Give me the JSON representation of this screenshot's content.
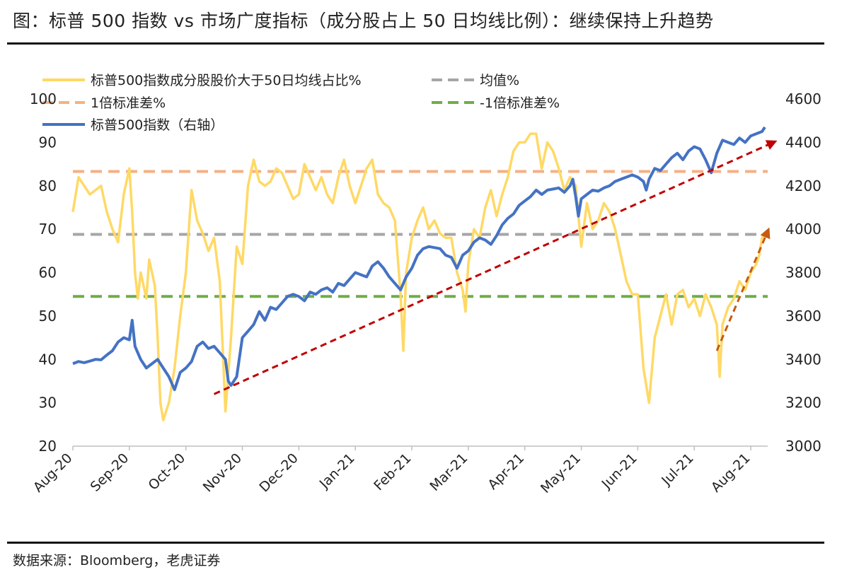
{
  "title": "图：标普 500 指数 vs 市场广度指标（成分股占上 50 日均线比例）：继续保持上升趋势",
  "source": "数据来源：Bloomberg，老虎证券",
  "chart_data": {
    "type": "line",
    "left_axis": {
      "ticks": [
        20,
        30,
        40,
        50,
        60,
        70,
        80,
        90,
        100
      ],
      "range": [
        20,
        100
      ]
    },
    "right_axis": {
      "ticks": [
        3000,
        3200,
        3400,
        3600,
        3800,
        4000,
        4200,
        4400,
        4600
      ],
      "range": [
        3000,
        4600
      ]
    },
    "x_labels": [
      "Aug-20",
      "Sep-20",
      "Oct-20",
      "Nov-20",
      "Dec-20",
      "Jan-21",
      "Feb-21",
      "Mar-21",
      "Apr-21",
      "May-21",
      "Jun-21",
      "Jul-21",
      "Aug-21"
    ],
    "legend": [
      {
        "name": "标普500指数成分股股价大于50日均线占比%",
        "color": "#FFD966",
        "style": "solid"
      },
      {
        "name": "均值%",
        "color": "#A6A6A6",
        "style": "dashed"
      },
      {
        "name": "1倍标准差%",
        "color": "#F4B183",
        "style": "dashed"
      },
      {
        "name": "-1倍标准差%",
        "color": "#70AD47",
        "style": "dashed"
      },
      {
        "name": "标普500指数（右轴）",
        "color": "#4472C4",
        "style": "solid"
      }
    ],
    "reference_lines": {
      "mean": 68.8,
      "plus_1sd": 83.3,
      "minus_1sd": 54.5
    },
    "breadth_pct": [
      {
        "x": 0.0,
        "y": 74
      },
      {
        "x": 0.1,
        "y": 82
      },
      {
        "x": 0.2,
        "y": 80
      },
      {
        "x": 0.3,
        "y": 78
      },
      {
        "x": 0.5,
        "y": 80
      },
      {
        "x": 0.6,
        "y": 74
      },
      {
        "x": 0.7,
        "y": 70
      },
      {
        "x": 0.8,
        "y": 67
      },
      {
        "x": 0.9,
        "y": 78
      },
      {
        "x": 1.0,
        "y": 84
      },
      {
        "x": 1.05,
        "y": 74
      },
      {
        "x": 1.1,
        "y": 60
      },
      {
        "x": 1.15,
        "y": 54
      },
      {
        "x": 1.2,
        "y": 60
      },
      {
        "x": 1.3,
        "y": 54
      },
      {
        "x": 1.35,
        "y": 63
      },
      {
        "x": 1.45,
        "y": 57
      },
      {
        "x": 1.5,
        "y": 45
      },
      {
        "x": 1.55,
        "y": 30
      },
      {
        "x": 1.6,
        "y": 26
      },
      {
        "x": 1.7,
        "y": 30
      },
      {
        "x": 1.8,
        "y": 38
      },
      {
        "x": 1.9,
        "y": 50
      },
      {
        "x": 2.0,
        "y": 60
      },
      {
        "x": 2.1,
        "y": 79
      },
      {
        "x": 2.2,
        "y": 72
      },
      {
        "x": 2.3,
        "y": 69
      },
      {
        "x": 2.4,
        "y": 65
      },
      {
        "x": 2.5,
        "y": 68
      },
      {
        "x": 2.6,
        "y": 58
      },
      {
        "x": 2.7,
        "y": 28
      },
      {
        "x": 2.8,
        "y": 45
      },
      {
        "x": 2.9,
        "y": 66
      },
      {
        "x": 3.0,
        "y": 62
      },
      {
        "x": 3.1,
        "y": 80
      },
      {
        "x": 3.2,
        "y": 86
      },
      {
        "x": 3.3,
        "y": 81
      },
      {
        "x": 3.4,
        "y": 80
      },
      {
        "x": 3.5,
        "y": 81
      },
      {
        "x": 3.6,
        "y": 84
      },
      {
        "x": 3.7,
        "y": 83
      },
      {
        "x": 3.8,
        "y": 80
      },
      {
        "x": 3.9,
        "y": 77
      },
      {
        "x": 4.0,
        "y": 78
      },
      {
        "x": 4.1,
        "y": 85
      },
      {
        "x": 4.2,
        "y": 82
      },
      {
        "x": 4.3,
        "y": 79
      },
      {
        "x": 4.4,
        "y": 82
      },
      {
        "x": 4.5,
        "y": 78
      },
      {
        "x": 4.6,
        "y": 76
      },
      {
        "x": 4.7,
        "y": 82
      },
      {
        "x": 4.8,
        "y": 86
      },
      {
        "x": 4.9,
        "y": 80
      },
      {
        "x": 5.0,
        "y": 76
      },
      {
        "x": 5.1,
        "y": 80
      },
      {
        "x": 5.2,
        "y": 84
      },
      {
        "x": 5.3,
        "y": 86
      },
      {
        "x": 5.4,
        "y": 78
      },
      {
        "x": 5.5,
        "y": 76
      },
      {
        "x": 5.6,
        "y": 75
      },
      {
        "x": 5.7,
        "y": 72
      },
      {
        "x": 5.8,
        "y": 55
      },
      {
        "x": 5.85,
        "y": 42
      },
      {
        "x": 5.9,
        "y": 60
      },
      {
        "x": 6.0,
        "y": 68
      },
      {
        "x": 6.1,
        "y": 72
      },
      {
        "x": 6.2,
        "y": 75
      },
      {
        "x": 6.3,
        "y": 70
      },
      {
        "x": 6.4,
        "y": 72
      },
      {
        "x": 6.5,
        "y": 69
      },
      {
        "x": 6.6,
        "y": 68
      },
      {
        "x": 6.7,
        "y": 68
      },
      {
        "x": 6.8,
        "y": 60
      },
      {
        "x": 6.9,
        "y": 56
      },
      {
        "x": 6.95,
        "y": 51
      },
      {
        "x": 7.0,
        "y": 62
      },
      {
        "x": 7.1,
        "y": 70
      },
      {
        "x": 7.2,
        "y": 68
      },
      {
        "x": 7.3,
        "y": 75
      },
      {
        "x": 7.4,
        "y": 79
      },
      {
        "x": 7.5,
        "y": 73
      },
      {
        "x": 7.6,
        "y": 78
      },
      {
        "x": 7.7,
        "y": 82
      },
      {
        "x": 7.8,
        "y": 88
      },
      {
        "x": 7.9,
        "y": 90
      },
      {
        "x": 8.0,
        "y": 90
      },
      {
        "x": 8.1,
        "y": 92
      },
      {
        "x": 8.2,
        "y": 92
      },
      {
        "x": 8.3,
        "y": 84
      },
      {
        "x": 8.4,
        "y": 90
      },
      {
        "x": 8.5,
        "y": 88
      },
      {
        "x": 8.6,
        "y": 84
      },
      {
        "x": 8.7,
        "y": 79
      },
      {
        "x": 8.8,
        "y": 82
      },
      {
        "x": 8.9,
        "y": 80
      },
      {
        "x": 9.0,
        "y": 66
      },
      {
        "x": 9.1,
        "y": 76
      },
      {
        "x": 9.2,
        "y": 70
      },
      {
        "x": 9.3,
        "y": 72
      },
      {
        "x": 9.4,
        "y": 76
      },
      {
        "x": 9.5,
        "y": 74
      },
      {
        "x": 9.6,
        "y": 70
      },
      {
        "x": 9.7,
        "y": 64
      },
      {
        "x": 9.8,
        "y": 58
      },
      {
        "x": 9.9,
        "y": 55
      },
      {
        "x": 10.0,
        "y": 55
      },
      {
        "x": 10.1,
        "y": 38
      },
      {
        "x": 10.2,
        "y": 30
      },
      {
        "x": 10.3,
        "y": 45
      },
      {
        "x": 10.4,
        "y": 50
      },
      {
        "x": 10.5,
        "y": 55
      },
      {
        "x": 10.6,
        "y": 48
      },
      {
        "x": 10.7,
        "y": 55
      },
      {
        "x": 10.8,
        "y": 56
      },
      {
        "x": 10.9,
        "y": 52
      },
      {
        "x": 11.0,
        "y": 54
      },
      {
        "x": 11.1,
        "y": 50
      },
      {
        "x": 11.2,
        "y": 55
      },
      {
        "x": 11.3,
        "y": 52
      },
      {
        "x": 11.4,
        "y": 48
      },
      {
        "x": 11.45,
        "y": 36
      },
      {
        "x": 11.5,
        "y": 48
      },
      {
        "x": 11.6,
        "y": 52
      },
      {
        "x": 11.7,
        "y": 54
      },
      {
        "x": 11.8,
        "y": 58
      },
      {
        "x": 11.9,
        "y": 56
      },
      {
        "x": 12.0,
        "y": 60
      },
      {
        "x": 12.1,
        "y": 62
      },
      {
        "x": 12.15,
        "y": 64
      },
      {
        "x": 12.2,
        "y": 68
      },
      {
        "x": 12.25,
        "y": 69
      }
    ],
    "sp500_index": [
      {
        "x": 0.0,
        "y": 3380
      },
      {
        "x": 0.1,
        "y": 3390
      },
      {
        "x": 0.2,
        "y": 3385
      },
      {
        "x": 0.3,
        "y": 3392
      },
      {
        "x": 0.4,
        "y": 3400
      },
      {
        "x": 0.5,
        "y": 3398
      },
      {
        "x": 0.6,
        "y": 3420
      },
      {
        "x": 0.7,
        "y": 3440
      },
      {
        "x": 0.8,
        "y": 3480
      },
      {
        "x": 0.9,
        "y": 3500
      },
      {
        "x": 1.0,
        "y": 3490
      },
      {
        "x": 1.05,
        "y": 3580
      },
      {
        "x": 1.1,
        "y": 3460
      },
      {
        "x": 1.2,
        "y": 3400
      },
      {
        "x": 1.3,
        "y": 3360
      },
      {
        "x": 1.4,
        "y": 3380
      },
      {
        "x": 1.5,
        "y": 3400
      },
      {
        "x": 1.6,
        "y": 3360
      },
      {
        "x": 1.7,
        "y": 3320
      },
      {
        "x": 1.75,
        "y": 3290
      },
      {
        "x": 1.8,
        "y": 3260
      },
      {
        "x": 1.9,
        "y": 3340
      },
      {
        "x": 2.0,
        "y": 3360
      },
      {
        "x": 2.1,
        "y": 3390
      },
      {
        "x": 2.2,
        "y": 3460
      },
      {
        "x": 2.3,
        "y": 3480
      },
      {
        "x": 2.4,
        "y": 3450
      },
      {
        "x": 2.5,
        "y": 3460
      },
      {
        "x": 2.6,
        "y": 3430
      },
      {
        "x": 2.7,
        "y": 3400
      },
      {
        "x": 2.75,
        "y": 3300
      },
      {
        "x": 2.8,
        "y": 3280
      },
      {
        "x": 2.9,
        "y": 3320
      },
      {
        "x": 3.0,
        "y": 3500
      },
      {
        "x": 3.1,
        "y": 3530
      },
      {
        "x": 3.2,
        "y": 3560
      },
      {
        "x": 3.3,
        "y": 3620
      },
      {
        "x": 3.4,
        "y": 3580
      },
      {
        "x": 3.5,
        "y": 3640
      },
      {
        "x": 3.6,
        "y": 3630
      },
      {
        "x": 3.7,
        "y": 3660
      },
      {
        "x": 3.8,
        "y": 3690
      },
      {
        "x": 3.9,
        "y": 3700
      },
      {
        "x": 4.0,
        "y": 3690
      },
      {
        "x": 4.1,
        "y": 3670
      },
      {
        "x": 4.2,
        "y": 3710
      },
      {
        "x": 4.3,
        "y": 3700
      },
      {
        "x": 4.4,
        "y": 3720
      },
      {
        "x": 4.5,
        "y": 3730
      },
      {
        "x": 4.6,
        "y": 3710
      },
      {
        "x": 4.7,
        "y": 3750
      },
      {
        "x": 4.8,
        "y": 3740
      },
      {
        "x": 4.9,
        "y": 3770
      },
      {
        "x": 5.0,
        "y": 3800
      },
      {
        "x": 5.1,
        "y": 3790
      },
      {
        "x": 5.2,
        "y": 3780
      },
      {
        "x": 5.3,
        "y": 3830
      },
      {
        "x": 5.4,
        "y": 3850
      },
      {
        "x": 5.5,
        "y": 3820
      },
      {
        "x": 5.6,
        "y": 3780
      },
      {
        "x": 5.7,
        "y": 3750
      },
      {
        "x": 5.8,
        "y": 3720
      },
      {
        "x": 5.9,
        "y": 3780
      },
      {
        "x": 6.0,
        "y": 3820
      },
      {
        "x": 6.1,
        "y": 3880
      },
      {
        "x": 6.2,
        "y": 3910
      },
      {
        "x": 6.3,
        "y": 3920
      },
      {
        "x": 6.4,
        "y": 3915
      },
      {
        "x": 6.5,
        "y": 3910
      },
      {
        "x": 6.6,
        "y": 3880
      },
      {
        "x": 6.7,
        "y": 3870
      },
      {
        "x": 6.8,
        "y": 3820
      },
      {
        "x": 6.9,
        "y": 3880
      },
      {
        "x": 7.0,
        "y": 3900
      },
      {
        "x": 7.1,
        "y": 3940
      },
      {
        "x": 7.2,
        "y": 3960
      },
      {
        "x": 7.3,
        "y": 3950
      },
      {
        "x": 7.4,
        "y": 3930
      },
      {
        "x": 7.5,
        "y": 3970
      },
      {
        "x": 7.6,
        "y": 4020
      },
      {
        "x": 7.7,
        "y": 4050
      },
      {
        "x": 7.8,
        "y": 4070
      },
      {
        "x": 7.9,
        "y": 4110
      },
      {
        "x": 8.0,
        "y": 4130
      },
      {
        "x": 8.1,
        "y": 4150
      },
      {
        "x": 8.2,
        "y": 4180
      },
      {
        "x": 8.3,
        "y": 4160
      },
      {
        "x": 8.4,
        "y": 4180
      },
      {
        "x": 8.5,
        "y": 4185
      },
      {
        "x": 8.6,
        "y": 4190
      },
      {
        "x": 8.7,
        "y": 4170
      },
      {
        "x": 8.8,
        "y": 4200
      },
      {
        "x": 8.85,
        "y": 4230
      },
      {
        "x": 8.9,
        "y": 4150
      },
      {
        "x": 8.95,
        "y": 4060
      },
      {
        "x": 9.0,
        "y": 4140
      },
      {
        "x": 9.1,
        "y": 4160
      },
      {
        "x": 9.2,
        "y": 4180
      },
      {
        "x": 9.3,
        "y": 4175
      },
      {
        "x": 9.4,
        "y": 4190
      },
      {
        "x": 9.5,
        "y": 4200
      },
      {
        "x": 9.6,
        "y": 4220
      },
      {
        "x": 9.7,
        "y": 4230
      },
      {
        "x": 9.8,
        "y": 4240
      },
      {
        "x": 9.9,
        "y": 4250
      },
      {
        "x": 10.0,
        "y": 4240
      },
      {
        "x": 10.1,
        "y": 4220
      },
      {
        "x": 10.15,
        "y": 4180
      },
      {
        "x": 10.2,
        "y": 4230
      },
      {
        "x": 10.3,
        "y": 4280
      },
      {
        "x": 10.4,
        "y": 4270
      },
      {
        "x": 10.5,
        "y": 4300
      },
      {
        "x": 10.6,
        "y": 4330
      },
      {
        "x": 10.7,
        "y": 4350
      },
      {
        "x": 10.8,
        "y": 4320
      },
      {
        "x": 10.9,
        "y": 4360
      },
      {
        "x": 11.0,
        "y": 4380
      },
      {
        "x": 11.1,
        "y": 4370
      },
      {
        "x": 11.2,
        "y": 4320
      },
      {
        "x": 11.3,
        "y": 4260
      },
      {
        "x": 11.4,
        "y": 4350
      },
      {
        "x": 11.5,
        "y": 4410
      },
      {
        "x": 11.6,
        "y": 4400
      },
      {
        "x": 11.7,
        "y": 4390
      },
      {
        "x": 11.8,
        "y": 4420
      },
      {
        "x": 11.9,
        "y": 4400
      },
      {
        "x": 12.0,
        "y": 4430
      },
      {
        "x": 12.1,
        "y": 4440
      },
      {
        "x": 12.2,
        "y": 4450
      },
      {
        "x": 12.25,
        "y": 4470
      }
    ],
    "trend_lines": [
      {
        "color": "#C00000",
        "from": {
          "x": 2.5,
          "y": 3240
        },
        "to": {
          "x": 12.4,
          "y": 4400
        }
      },
      {
        "color": "#C55A11",
        "from": {
          "x": 11.4,
          "y": 3440
        },
        "to": {
          "x": 12.3,
          "y": 3990
        }
      }
    ]
  }
}
